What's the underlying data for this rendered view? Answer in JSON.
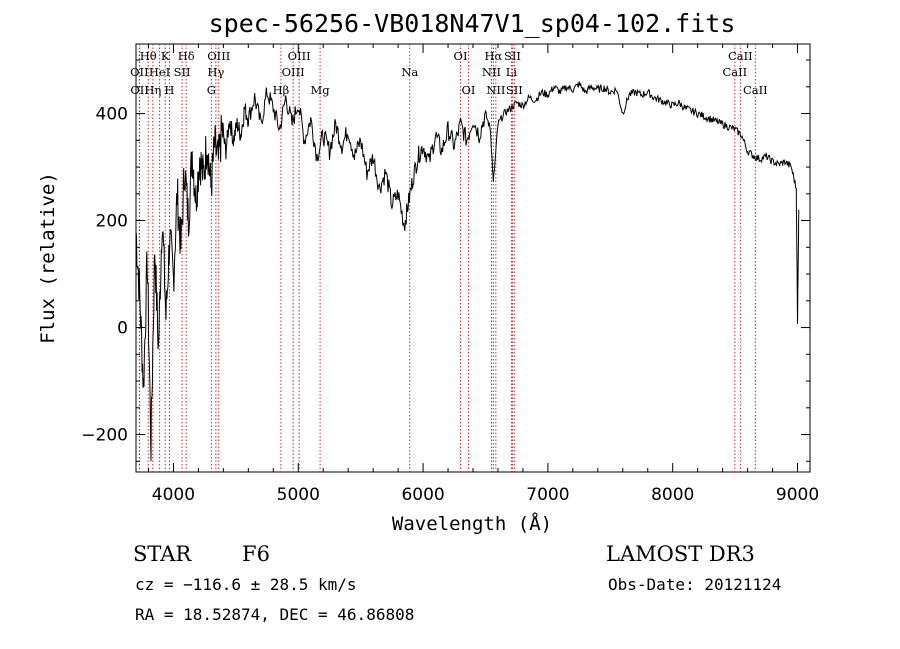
{
  "chart_data": {
    "type": "line",
    "title": "spec-56256-VB018N47V1_sp04-102.fits",
    "xlabel": "Wavelength (Å)",
    "ylabel": "Flux (relative)",
    "xlim": [
      3700,
      9100
    ],
    "ylim": [
      -270,
      530
    ],
    "xticks": [
      4000,
      5000,
      6000,
      7000,
      8000,
      9000
    ],
    "yticks": [
      -200,
      0,
      200,
      400
    ],
    "grid": false,
    "series": [
      {
        "name": "spectrum",
        "points": [
          [
            3700,
            180
          ],
          [
            3730,
            60
          ],
          [
            3760,
            -110
          ],
          [
            3790,
            130
          ],
          [
            3820,
            -220
          ],
          [
            3850,
            150
          ],
          [
            3880,
            -40
          ],
          [
            3910,
            210
          ],
          [
            3940,
            20
          ],
          [
            3970,
            170
          ],
          [
            4000,
            90
          ],
          [
            4030,
            250
          ],
          [
            4060,
            150
          ],
          [
            4090,
            300
          ],
          [
            4120,
            200
          ],
          [
            4150,
            330
          ],
          [
            4180,
            240
          ],
          [
            4210,
            320
          ],
          [
            4240,
            280
          ],
          [
            4270,
            350
          ],
          [
            4300,
            260
          ],
          [
            4330,
            340
          ],
          [
            4360,
            310
          ],
          [
            4390,
            370
          ],
          [
            4420,
            330
          ],
          [
            4450,
            390
          ],
          [
            4480,
            350
          ],
          [
            4510,
            380
          ],
          [
            4540,
            360
          ],
          [
            4570,
            410
          ],
          [
            4600,
            390
          ],
          [
            4650,
            430
          ],
          [
            4700,
            380
          ],
          [
            4750,
            440
          ],
          [
            4800,
            410
          ],
          [
            4850,
            370
          ],
          [
            4900,
            430
          ],
          [
            4950,
            380
          ],
          [
            5000,
            420
          ],
          [
            5050,
            350
          ],
          [
            5100,
            390
          ],
          [
            5150,
            320
          ],
          [
            5200,
            360
          ],
          [
            5250,
            330
          ],
          [
            5300,
            380
          ],
          [
            5350,
            340
          ],
          [
            5400,
            370
          ],
          [
            5450,
            320
          ],
          [
            5500,
            350
          ],
          [
            5550,
            290
          ],
          [
            5600,
            320
          ],
          [
            5650,
            260
          ],
          [
            5700,
            290
          ],
          [
            5750,
            230
          ],
          [
            5800,
            250
          ],
          [
            5850,
            190
          ],
          [
            5880,
            230
          ],
          [
            5920,
            280
          ],
          [
            5960,
            320
          ],
          [
            6000,
            340
          ],
          [
            6050,
            310
          ],
          [
            6100,
            360
          ],
          [
            6150,
            330
          ],
          [
            6200,
            370
          ],
          [
            6250,
            340
          ],
          [
            6300,
            380
          ],
          [
            6350,
            350
          ],
          [
            6400,
            390
          ],
          [
            6450,
            360
          ],
          [
            6500,
            400
          ],
          [
            6540,
            370
          ],
          [
            6563,
            270
          ],
          [
            6600,
            380
          ],
          [
            6650,
            400
          ],
          [
            6700,
            410
          ],
          [
            6750,
            420
          ],
          [
            6800,
            415
          ],
          [
            6850,
            430
          ],
          [
            6900,
            425
          ],
          [
            6950,
            440
          ],
          [
            7000,
            435
          ],
          [
            7050,
            450
          ],
          [
            7100,
            440
          ],
          [
            7150,
            450
          ],
          [
            7200,
            445
          ],
          [
            7250,
            455
          ],
          [
            7300,
            440
          ],
          [
            7350,
            450
          ],
          [
            7400,
            445
          ],
          [
            7450,
            448
          ],
          [
            7500,
            440
          ],
          [
            7550,
            445
          ],
          [
            7600,
            400
          ],
          [
            7650,
            435
          ],
          [
            7700,
            440
          ],
          [
            7750,
            435
          ],
          [
            7800,
            440
          ],
          [
            7850,
            430
          ],
          [
            7900,
            425
          ],
          [
            7950,
            420
          ],
          [
            8000,
            415
          ],
          [
            8050,
            420
          ],
          [
            8100,
            410
          ],
          [
            8150,
            405
          ],
          [
            8200,
            400
          ],
          [
            8250,
            395
          ],
          [
            8300,
            390
          ],
          [
            8350,
            385
          ],
          [
            8400,
            380
          ],
          [
            8450,
            375
          ],
          [
            8500,
            370
          ],
          [
            8550,
            360
          ],
          [
            8600,
            330
          ],
          [
            8650,
            320
          ],
          [
            8700,
            315
          ],
          [
            8750,
            320
          ],
          [
            8800,
            310
          ],
          [
            8850,
            305
          ],
          [
            8900,
            310
          ],
          [
            8950,
            300
          ],
          [
            8990,
            260
          ],
          [
            9000,
            10
          ],
          [
            9010,
            220
          ]
        ]
      }
    ],
    "line_marks": [
      {
        "label": "Hθ",
        "wavelength": 3798,
        "row": 1
      },
      {
        "label": "OII",
        "wavelength": 3727,
        "row": 2
      },
      {
        "label": "OII",
        "wavelength": 3729,
        "row": 3
      },
      {
        "label": "Hη",
        "wavelength": 3835,
        "row": 3
      },
      {
        "label": "K",
        "wavelength": 3934,
        "row": 1
      },
      {
        "label": "HeI",
        "wavelength": 3889,
        "row": 2
      },
      {
        "label": "H",
        "wavelength": 3968,
        "row": 3
      },
      {
        "label": "SII",
        "wavelength": 4069,
        "row": 2
      },
      {
        "label": "Hδ",
        "wavelength": 4102,
        "row": 1
      },
      {
        "label": "OIII",
        "wavelength": 4363,
        "row": 1
      },
      {
        "label": "Hγ",
        "wavelength": 4340,
        "row": 2
      },
      {
        "label": "G",
        "wavelength": 4304,
        "row": 3
      },
      {
        "label": "Hβ",
        "wavelength": 4861,
        "row": 3
      },
      {
        "label": "OIII",
        "wavelength": 5007,
        "row": 1
      },
      {
        "label": "OIII",
        "wavelength": 4959,
        "row": 2
      },
      {
        "label": "Mg",
        "wavelength": 5175,
        "row": 3
      },
      {
        "label": "Na",
        "wavelength": 5893,
        "row": 2
      },
      {
        "label": "OI",
        "wavelength": 6300,
        "row": 1
      },
      {
        "label": "OI",
        "wavelength": 6364,
        "row": 3
      },
      {
        "label": "Hα",
        "wavelength": 6563,
        "row": 1
      },
      {
        "label": "SII",
        "wavelength": 6716,
        "row": 1
      },
      {
        "label": "NII",
        "wavelength": 6548,
        "row": 2
      },
      {
        "label": "Li",
        "wavelength": 6708,
        "row": 2
      },
      {
        "label": "NII",
        "wavelength": 6583,
        "row": 3
      },
      {
        "label": "SII",
        "wavelength": 6731,
        "row": 3
      },
      {
        "label": "CaII",
        "wavelength": 8542,
        "row": 1
      },
      {
        "label": "CaII",
        "wavelength": 8498,
        "row": 2
      },
      {
        "label": "CaII",
        "wavelength": 8662,
        "row": 3
      }
    ]
  },
  "info": {
    "class": "STAR",
    "subclass": "F6",
    "survey": "LAMOST DR3",
    "cz": "cz = −116.6 ± 28.5 km/s",
    "obs_date": "Obs-Date: 20121124",
    "coords": "RA =  18.52874, DEC =  46.86808"
  }
}
